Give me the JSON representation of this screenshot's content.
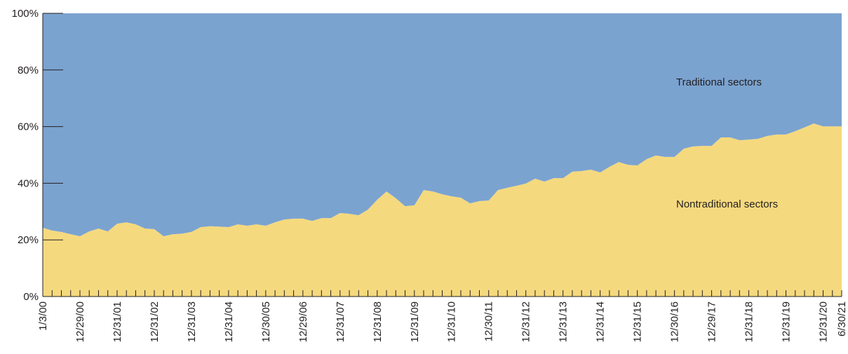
{
  "chart_data": {
    "type": "stacked_area",
    "categories": [
      "1/3/00",
      null,
      null,
      null,
      "12/29/00",
      null,
      null,
      null,
      "12/31/01",
      null,
      null,
      null,
      "12/31/02",
      null,
      null,
      null,
      "12/31/03",
      null,
      null,
      null,
      "12/31/04",
      null,
      null,
      null,
      "12/30/05",
      null,
      null,
      null,
      "12/29/06",
      null,
      null,
      null,
      "12/31/07",
      null,
      null,
      null,
      "12/31/08",
      null,
      null,
      null,
      "12/31/09",
      null,
      null,
      null,
      "12/31/10",
      null,
      null,
      null,
      "12/30/11",
      null,
      null,
      null,
      "12/31/12",
      null,
      null,
      null,
      "12/31/13",
      null,
      null,
      null,
      "12/31/14",
      null,
      null,
      null,
      "12/31/15",
      null,
      null,
      null,
      "12/30/16",
      null,
      null,
      null,
      "12/29/17",
      null,
      null,
      null,
      "12/31/18",
      null,
      null,
      null,
      "12/31/19",
      null,
      null,
      null,
      "12/31/20",
      null,
      "6/30/21"
    ],
    "series": [
      {
        "name": "Nontraditional sectors",
        "color": "#f5d97e",
        "values": [
          24.3,
          23.3,
          22.8,
          22,
          21.3,
          23,
          24,
          23,
          25.7,
          26.2,
          25.5,
          24,
          23.8,
          21.3,
          22,
          22.2,
          22.8,
          24.5,
          24.8,
          24.7,
          24.5,
          25.5,
          25,
          25.5,
          25,
          26.2,
          27.2,
          27.5,
          27.5,
          26.7,
          27.7,
          27.7,
          29.5,
          29.2,
          28.7,
          30.7,
          34.2,
          37.1,
          34.7,
          31.9,
          32.2,
          37.6,
          37.1,
          36.1,
          35.4,
          34.9,
          32.9,
          33.7,
          33.9,
          37.6,
          38.4,
          39.1,
          39.9,
          41.6,
          40.6,
          41.8,
          41.8,
          44.1,
          44.3,
          44.8,
          43.8,
          45.8,
          47.5,
          46.5,
          46.3,
          48.5,
          49.8,
          49.3,
          49.3,
          52.2,
          53,
          53.2,
          53.2,
          56.2,
          56.2,
          55.2,
          55.4,
          55.7,
          56.7,
          57.2,
          57.2,
          58.4,
          59.7,
          61.1,
          60.1,
          60.1,
          60.1
        ]
      },
      {
        "name": "Traditional sectors",
        "color": "#7ba3d0",
        "values": [
          75.7,
          76.7,
          77.2,
          78,
          78.7,
          77,
          76,
          77,
          74.3,
          73.8,
          74.5,
          76,
          76.2,
          78.7,
          78,
          77.8,
          77.2,
          75.5,
          75.2,
          75.3,
          75.5,
          74.5,
          75,
          74.5,
          75,
          73.8,
          72.8,
          72.5,
          72.5,
          73.3,
          72.3,
          72.3,
          70.5,
          70.8,
          71.3,
          69.3,
          65.8,
          62.9,
          65.3,
          68.1,
          67.8,
          62.4,
          62.9,
          63.9,
          64.6,
          65.1,
          67.1,
          66.3,
          66.1,
          62.4,
          61.6,
          60.9,
          60.1,
          58.4,
          59.4,
          58.2,
          58.2,
          55.9,
          55.7,
          55.2,
          56.2,
          54.2,
          52.5,
          53.5,
          53.7,
          51.5,
          50.2,
          50.7,
          50.7,
          47.8,
          47,
          46.8,
          46.8,
          43.8,
          43.8,
          44.8,
          44.6,
          44.3,
          43.3,
          42.8,
          42.8,
          41.6,
          40.3,
          38.9,
          39.9,
          39.9,
          39.9
        ]
      }
    ],
    "ylim": [
      0,
      100
    ],
    "yticks": [
      {
        "value": 0,
        "label": "0%"
      },
      {
        "value": 20,
        "label": "20%"
      },
      {
        "value": 40,
        "label": "40%"
      },
      {
        "value": 60,
        "label": "60%"
      },
      {
        "value": 80,
        "label": "80%"
      },
      {
        "value": 100,
        "label": "100%"
      }
    ]
  }
}
